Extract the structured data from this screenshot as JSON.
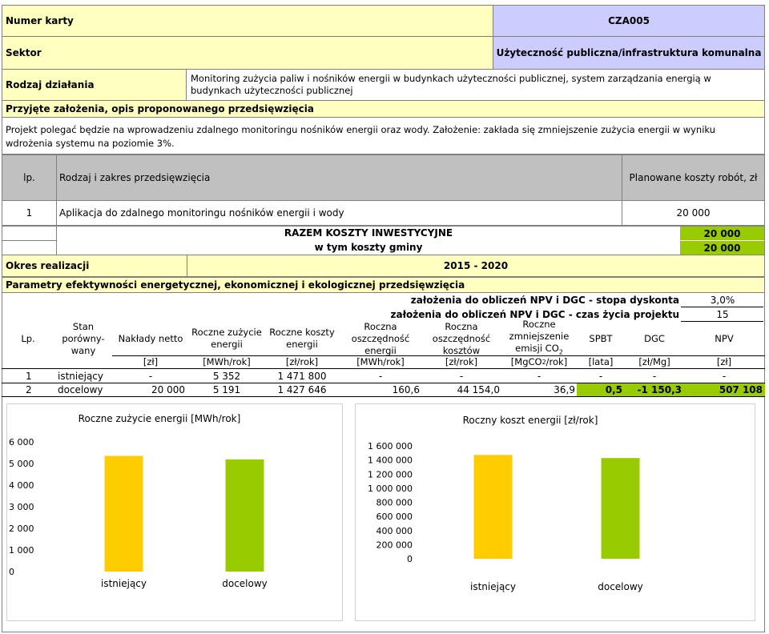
{
  "header": {
    "card_number_label": "Numer karty",
    "card_number_value": "CZA005",
    "sector_label": "Sektor",
    "sector_value": "Użyteczność publiczna/infrastruktura komunalna",
    "action_type_label": "Rodzaj działania",
    "action_type_value": "Monitoring zużycia paliw i nośników energii w budynkach użyteczności publicznej, system zarządzania energią w budynkach użyteczności publicznej",
    "assumptions_label": "Przyjęte założenia, opis proponowanego przedsięwzięcia",
    "description": "Projekt polegać będzie na wprowadzeniu zdalnego monitoringu nośników energii oraz wody. Założenie: zakłada się zmniejszenie zużycia energii w wyniku wdrożenia systemu na poziomie 3%."
  },
  "investment_table": {
    "col_lp": "lp.",
    "col_scope": "Rodzaj i zakres przedsięwzięcia",
    "col_cost": "Planowane koszty robót, zł",
    "rows": [
      {
        "lp": "1",
        "scope": "Aplikacja do zdalnego monitoringu nośników energii i wody",
        "cost": "20 000"
      }
    ],
    "total_label": "RAZEM KOSZTY INWESTYCYJNE",
    "total_value": "20 000",
    "municipal_label": "w tym koszty gminy",
    "municipal_value": "20 000"
  },
  "period": {
    "label": "Okres realizacji",
    "value": "2015 - 2020"
  },
  "parameters": {
    "title": "Parametry efektywności energetycznej, ekonomicznej i ekologicznej przedsięwzięcia",
    "discount_label": "założenia do obliczeń NPV i DGC - stopa dyskonta",
    "discount_value": "3,0%",
    "lifetime_label": "założenia do obliczeń NPV i DGC - czas życia projektu",
    "lifetime_value": "15",
    "headers": {
      "lp": "Lp.",
      "state": "Stan porówny-wany",
      "state_l1": "Stan",
      "state_l2": "porówny-",
      "state_l3": "wany",
      "capex": "Nakłady netto",
      "energy_use_l1": "Roczne zużycie",
      "energy_use_l2": "energii",
      "energy_cost_l1": "Roczne koszty",
      "energy_cost_l2": "energii",
      "energy_saving_l1": "Roczna",
      "energy_saving_l2": "oszczędność",
      "energy_saving_l3": "energii",
      "cost_saving_l1": "Roczna",
      "cost_saving_l2": "oszczędność",
      "cost_saving_l3": "kosztów",
      "co2_l1": "Roczne",
      "co2_l2": "zmniejszenie",
      "co2_l3": "emisji CO",
      "co2_sub": "2",
      "spbt": "SPBT",
      "dgc": "DGC",
      "npv": "NPV"
    },
    "units": {
      "capex": "[zł]",
      "energy_use": "[MWh/rok]",
      "energy_cost": "[zł/rok]",
      "energy_saving": "[MWh/rok]",
      "cost_saving": "[zł/rok]",
      "co2_pre": "[MgCO",
      "co2_sub": "2",
      "co2_post": "/rok]",
      "spbt": "[lata]",
      "dgc": "[zł/Mg]",
      "npv": "[zł]"
    },
    "rows": [
      {
        "lp": "1",
        "state": "istniejący",
        "capex": "-",
        "energy_use": "5 352",
        "energy_cost": "1 471 800",
        "energy_saving": "-",
        "cost_saving": "-",
        "co2": "-",
        "spbt": "-",
        "dgc": "-",
        "npv": "-"
      },
      {
        "lp": "2",
        "state": "docelowy",
        "capex": "20 000",
        "energy_use": "5 191",
        "energy_cost": "1 427 646",
        "energy_saving": "160,6",
        "cost_saving": "44 154,0",
        "co2": "36,9",
        "spbt": "0,5",
        "dgc": "-1 150,3",
        "npv": "507 108"
      }
    ]
  },
  "colors": {
    "yellow_bg": "#ffffc0",
    "lavender_bg": "#ccccff",
    "grey_bg": "#c0c0c0",
    "green_bg": "#99cc00",
    "bar_existing": "#ffcc00",
    "bar_target": "#99cc00"
  },
  "chart_data": [
    {
      "type": "bar",
      "title": "Roczne zużycie energii [MWh/rok]",
      "categories": [
        "istniejący",
        "docelowy"
      ],
      "values": [
        5352,
        5191
      ],
      "colors": [
        "#ffcc00",
        "#99cc00"
      ],
      "ylim": [
        0,
        6000
      ],
      "yticks": [
        0,
        1000,
        2000,
        3000,
        4000,
        5000,
        6000
      ],
      "ytick_labels": [
        "0",
        "1 000",
        "2 000",
        "3 000",
        "4 000",
        "5 000",
        "6 000"
      ],
      "grid": false,
      "legend": "none"
    },
    {
      "type": "bar",
      "title": "Roczny koszt energii [zł/rok]",
      "categories": [
        "istniejący",
        "docelowy"
      ],
      "values": [
        1471800,
        1427646
      ],
      "colors": [
        "#ffcc00",
        "#99cc00"
      ],
      "ylim": [
        0,
        1600000
      ],
      "yticks": [
        0,
        200000,
        400000,
        600000,
        800000,
        1000000,
        1200000,
        1400000,
        1600000
      ],
      "ytick_labels": [
        "0",
        "200 000",
        "400 000",
        "600 000",
        "800 000",
        "1 000 000",
        "1 200 000",
        "1 400 000",
        "1 600 000"
      ],
      "grid": false,
      "legend": "none"
    }
  ]
}
